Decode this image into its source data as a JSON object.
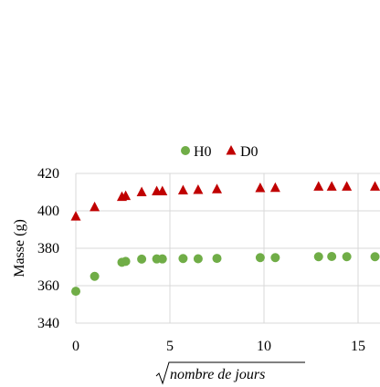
{
  "chart_data": {
    "type": "scatter",
    "title": "",
    "xlabel": "nombre de jours",
    "xlabel_sqrt": true,
    "ylabel": "Masse (g)",
    "xlim": [
      0,
      16
    ],
    "ylim": [
      340,
      420
    ],
    "x_ticks": [
      0,
      5,
      10,
      15
    ],
    "y_ticks": [
      340,
      360,
      380,
      400,
      420
    ],
    "grid": true,
    "legend_position": "top",
    "series": [
      {
        "name": "H0",
        "marker": "circle",
        "color": "#70AD47",
        "points": [
          [
            0,
            357
          ],
          [
            1,
            365
          ],
          [
            2.45,
            372.5
          ],
          [
            2.65,
            373
          ],
          [
            3.5,
            374.2
          ],
          [
            4.3,
            374.3
          ],
          [
            4.6,
            374.3
          ],
          [
            5.7,
            374.5
          ],
          [
            6.5,
            374.4
          ],
          [
            7.5,
            374.6
          ],
          [
            9.8,
            375
          ],
          [
            10.6,
            375
          ],
          [
            12.9,
            375.5
          ],
          [
            13.6,
            375.6
          ],
          [
            14.4,
            375.5
          ],
          [
            15.9,
            375.5
          ]
        ]
      },
      {
        "name": "D0",
        "marker": "triangle",
        "color": "#C00000",
        "points": [
          [
            0,
            397
          ],
          [
            1,
            402
          ],
          [
            2.45,
            407.5
          ],
          [
            2.65,
            408
          ],
          [
            3.5,
            410
          ],
          [
            4.3,
            410.5
          ],
          [
            4.6,
            410.5
          ],
          [
            5.7,
            411
          ],
          [
            6.5,
            411.2
          ],
          [
            7.5,
            411.6
          ],
          [
            9.8,
            412.2
          ],
          [
            10.6,
            412.3
          ],
          [
            12.9,
            413
          ],
          [
            13.6,
            413
          ],
          [
            14.4,
            413
          ],
          [
            15.9,
            413
          ]
        ]
      }
    ]
  }
}
